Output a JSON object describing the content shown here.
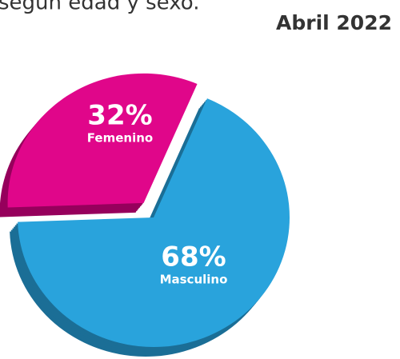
{
  "chart_data": {
    "type": "pie",
    "subtitle": "según edad y sexo.",
    "date_label": "Abril 2022",
    "categories": [
      "Femenino",
      "Masculino"
    ],
    "values": [
      32,
      68
    ],
    "value_labels": [
      "32%",
      "68%"
    ],
    "colors": [
      "#e0068a",
      "#29a3dc"
    ],
    "side_colors": [
      "#96005c",
      "#1b6e96"
    ]
  }
}
